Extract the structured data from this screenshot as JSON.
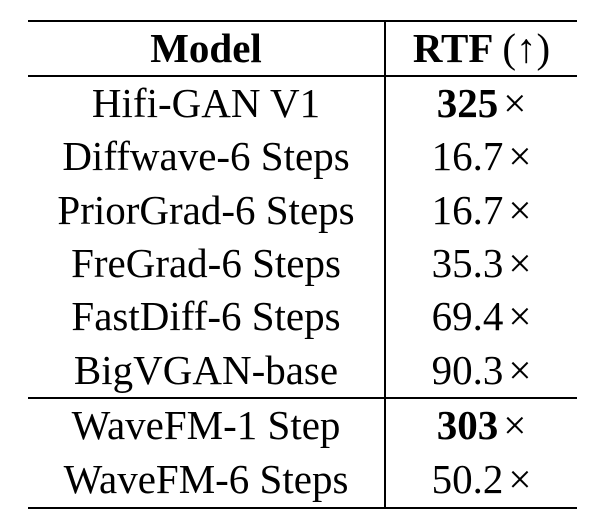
{
  "table": {
    "header": {
      "model": "Model",
      "rtf": "RTF",
      "rtf_note": "(↑)"
    },
    "rows": [
      {
        "model": "Hifi-GAN V1",
        "value": "325",
        "times": "×",
        "emphasis": "bold"
      },
      {
        "model": "Diffwave-6 Steps",
        "value": "16.7",
        "times": "×",
        "emphasis": "normal"
      },
      {
        "model": "PriorGrad-6 Steps",
        "value": "16.7",
        "times": "×",
        "emphasis": "normal"
      },
      {
        "model": "FreGrad-6 Steps",
        "value": "35.3",
        "times": "×",
        "emphasis": "normal"
      },
      {
        "model": "FastDiff-6 Steps",
        "value": "69.4",
        "times": "×",
        "emphasis": "normal"
      },
      {
        "model": "BigVGAN-base",
        "value": "90.3",
        "times": "×",
        "emphasis": "normal"
      },
      {
        "model": "WaveFM-1 Step",
        "value": "303",
        "times": "×",
        "emphasis": "bold"
      },
      {
        "model": "WaveFM-6 Steps",
        "value": "50.2",
        "times": "×",
        "emphasis": "normal"
      }
    ],
    "colors": {
      "text": "#000000",
      "background": "#ffffff",
      "rule": "#000000"
    }
  }
}
